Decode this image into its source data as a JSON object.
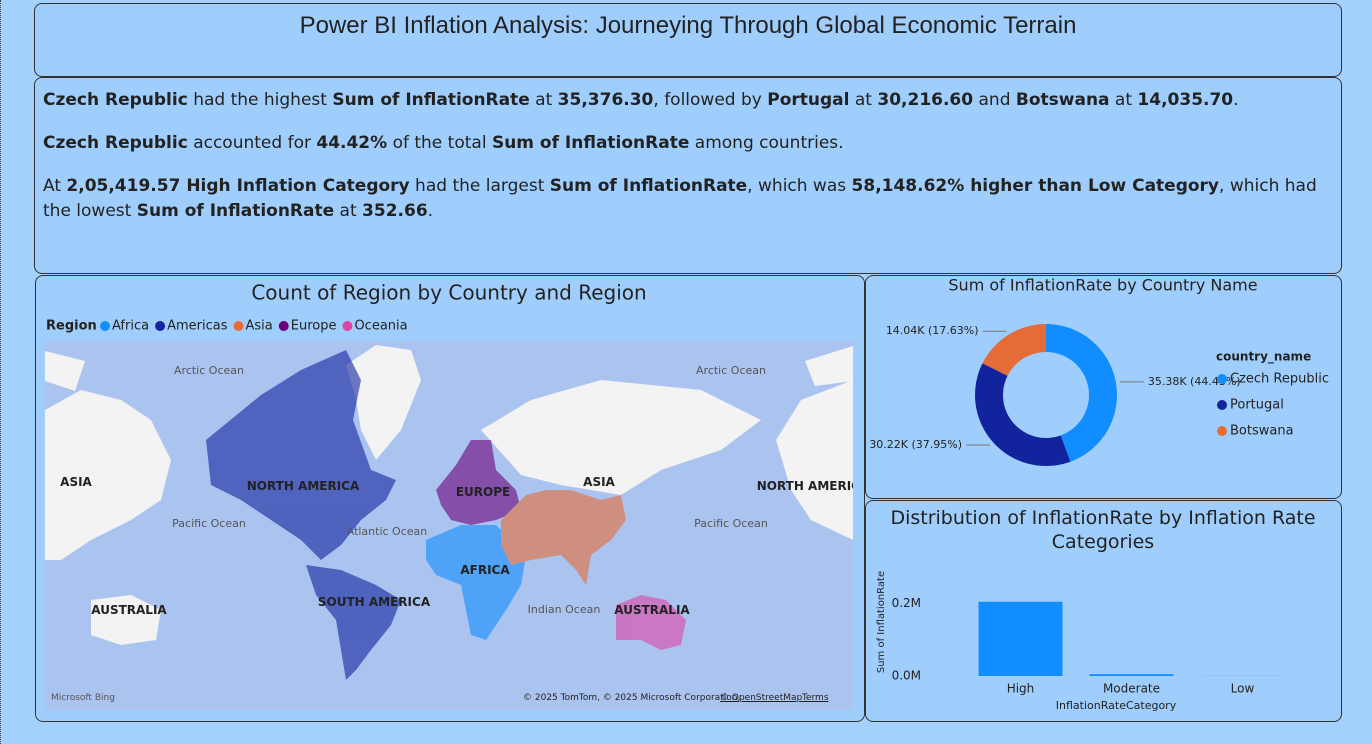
{
  "header": {
    "title": "Power BI Inflation Analysis: Journeying Through Global Economic Terrain"
  },
  "narrative": {
    "paragraphs": [
      [
        {
          "text": "Czech Republic",
          "bold": true
        },
        {
          "text": " had the highest ",
          "bold": false
        },
        {
          "text": "Sum of InflationRate",
          "bold": true
        },
        {
          "text": " at ",
          "bold": false
        },
        {
          "text": "35,376.30",
          "bold": true
        },
        {
          "text": ", followed by ",
          "bold": false
        },
        {
          "text": "Portugal",
          "bold": true
        },
        {
          "text": " at ",
          "bold": false
        },
        {
          "text": "30,216.60",
          "bold": true
        },
        {
          "text": " and ",
          "bold": false
        },
        {
          "text": "Botswana",
          "bold": true
        },
        {
          "text": " at ",
          "bold": false
        },
        {
          "text": "14,035.70",
          "bold": true
        },
        {
          "text": ".",
          "bold": false
        }
      ],
      [
        {
          "text": "Czech Republic",
          "bold": true
        },
        {
          "text": " accounted for ",
          "bold": false
        },
        {
          "text": "44.42%",
          "bold": true
        },
        {
          "text": " of the total ",
          "bold": false
        },
        {
          "text": "Sum of InflationRate",
          "bold": true
        },
        {
          "text": " among countries.",
          "bold": false
        }
      ],
      [
        {
          "text": "At ",
          "bold": false
        },
        {
          "text": "2,05,419.57 High Inflation Category",
          "bold": true
        },
        {
          "text": " had the largest ",
          "bold": false
        },
        {
          "text": "Sum of InflationRate",
          "bold": true
        },
        {
          "text": ", which was ",
          "bold": false
        },
        {
          "text": "58,148.62%  higher than Low Category",
          "bold": true
        },
        {
          "text": ", which had the lowest ",
          "bold": false
        },
        {
          "text": "Sum of InflationRate",
          "bold": true
        },
        {
          "text": " at ",
          "bold": false
        },
        {
          "text": "352.66",
          "bold": true
        },
        {
          "text": ".",
          "bold": false
        }
      ]
    ]
  },
  "map": {
    "title": "Count of Region by Country and Region",
    "legend_title": "Region",
    "legend": [
      {
        "name": "Africa",
        "color": "#118dff"
      },
      {
        "name": "Americas",
        "color": "#12239e"
      },
      {
        "name": "Asia",
        "color": "#e66c37"
      },
      {
        "name": "Europe",
        "color": "#6b007b"
      },
      {
        "name": "Oceania",
        "color": "#e044a7"
      }
    ],
    "labels": [
      "Arctic Ocean",
      "Arctic Ocean",
      "ASIA",
      "NORTH AMERICA",
      "EUROPE",
      "ASIA",
      "NORTH AMERICA",
      "Pacific Ocean",
      "Atlantic Ocean",
      "AFRICA",
      "Pacific Ocean",
      "SOUTH AMERICA",
      "AUSTRALIA",
      "Indian Ocean",
      "AUSTRALIA"
    ],
    "logo": "Microsoft Bing",
    "attribution": "© 2025 TomTom, © 2025 Microsoft Corporation,",
    "osm": "© OpenStreetMap",
    "terms": "Terms"
  },
  "chart_data": [
    {
      "type": "donut",
      "title": "Sum of InflationRate by Country Name",
      "legend_title": "country_name",
      "categories": [
        "Czech Republic",
        "Portugal",
        "Botswana"
      ],
      "values": [
        35376.3,
        30216.6,
        14035.7
      ],
      "value_labels": [
        "35.38K (44.43%)",
        "30.22K (37.95%)",
        "14.04K (17.63%)"
      ],
      "colors": [
        "#118dff",
        "#12239e",
        "#e66c37"
      ]
    },
    {
      "type": "bar",
      "title": "Distribution of InflationRate by Inflation Rate Categories",
      "x_label": "InflationRateCategory",
      "y_label": "Sum of InflationRate",
      "categories": [
        "High",
        "Moderate",
        "Low"
      ],
      "values": [
        205419.57,
        5000,
        352.66
      ],
      "color": "#118dff",
      "ylim": [
        0,
        260000
      ],
      "yticks": [
        {
          "value": 0,
          "label": "0.0M"
        },
        {
          "value": 200000,
          "label": "0.2M"
        }
      ]
    }
  ]
}
